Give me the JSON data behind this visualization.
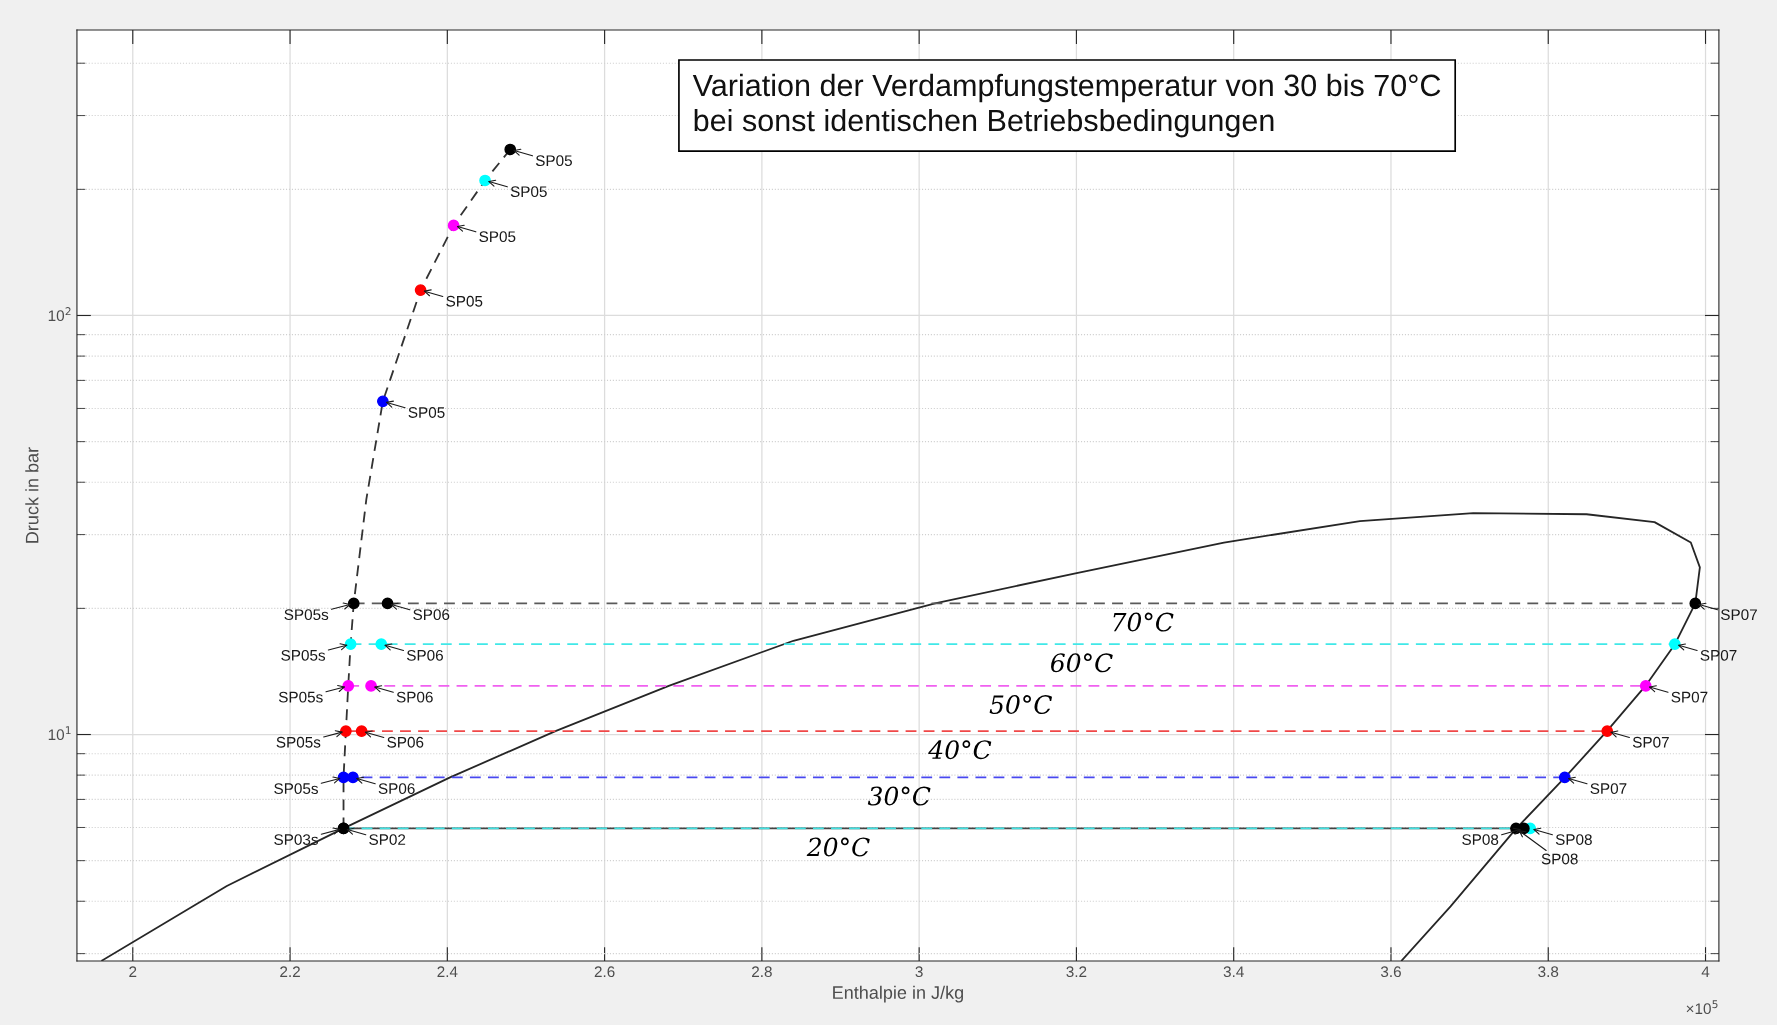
{
  "chart_data": {
    "type": "line",
    "xlabel": "Enthalpie in J/kg",
    "ylabel": "Druck in bar",
    "log": "y",
    "grid": true,
    "marker": "circle",
    "xlim": [
      1.929,
      4.017
    ],
    "ylim": [
      2.88,
      480
    ],
    "xticks": [
      2,
      2.2,
      2.4,
      2.6,
      2.8,
      3,
      3.2,
      3.4,
      3.6,
      3.8,
      4
    ],
    "yticks": [
      {
        "value": 10,
        "label": "10$^{1}$"
      },
      {
        "value": 100,
        "label": "10$^{2}$"
      }
    ],
    "series": [
      {
        "marker": "none",
        "line_style": "solid",
        "color": "#262626",
        "x": [
          1.9611,
          2.1196,
          2.268,
          2.4035,
          2.5375,
          2.6816,
          2.8401,
          3.0202,
          3.2003,
          3.3876,
          3.5605,
          3.7046,
          3.8487,
          3.9352,
          3.9813,
          3.9928,
          3.987,
          3.9611,
          3.9236,
          3.8746,
          3.8213,
          3.7594,
          3.6758,
          3.6138
        ],
        "values": [
          2.89,
          4.35,
          5.97,
          7.9,
          10.19,
          13.06,
          16.74,
          20.55,
          24.29,
          28.72,
          32.32,
          33.76,
          33.55,
          32.12,
          28.72,
          25.05,
          20.55,
          16.43,
          13.06,
          10.19,
          7.9,
          5.97,
          3.89,
          2.89
        ]
      },
      {
        "marker": "none",
        "line_style": "dashed",
        "color": "#333333",
        "x": [
          2.268,
          2.268,
          2.271,
          2.274,
          2.277,
          2.281,
          2.297,
          2.318,
          2.366,
          2.408,
          2.448,
          2.48
        ],
        "values": [
          5.97,
          7.9,
          10.19,
          13.06,
          16.43,
          20.55,
          36.4,
          62.4,
          115,
          164,
          210,
          249
        ]
      },
      {
        "marker": "none",
        "line_style": "solid",
        "color": "#444444",
        "x": [
          2.268,
          3.759
        ],
        "values": [
          5.97,
          5.97
        ]
      },
      {
        "name": "20°C",
        "marker": "none",
        "line_style": "dashed",
        "color": "#40e0e0",
        "x": [
          2.268,
          3.777
        ],
        "values": [
          5.97,
          5.97
        ]
      },
      {
        "name": "30°C",
        "marker": "none",
        "line_style": "dashed",
        "color": "#4848f0",
        "x": [
          2.268,
          3.821
        ],
        "values": [
          7.9,
          7.9
        ]
      },
      {
        "name": "40°C",
        "marker": "none",
        "line_style": "dashed",
        "color": "#f04848",
        "x": [
          2.271,
          3.875
        ],
        "values": [
          10.19,
          10.19
        ]
      },
      {
        "name": "50°C",
        "marker": "none",
        "line_style": "dashed",
        "color": "#f060f0",
        "x": [
          2.274,
          3.924
        ],
        "values": [
          13.06,
          13.06
        ]
      },
      {
        "name": "60°C",
        "marker": "none",
        "line_style": "dashed",
        "color": "#40e8e8",
        "x": [
          2.277,
          3.961
        ],
        "values": [
          16.43,
          16.43
        ]
      },
      {
        "name": "70°C",
        "marker": "none",
        "line_style": "dashed",
        "color": "#5a5a5a",
        "x": [
          2.281,
          3.987
        ],
        "values": [
          20.55,
          20.55
        ]
      },
      {
        "type": "scatter",
        "color": "#000000",
        "x": [
          2.48,
          2.281,
          2.324,
          3.987
        ],
        "values": [
          249,
          20.55,
          20.55,
          20.55
        ],
        "value_labels": [
          "SP05",
          "SP05s",
          "SP06",
          "SP07"
        ]
      },
      {
        "type": "scatter",
        "color": "#00ffff",
        "x": [
          2.448,
          2.277,
          2.316,
          3.961
        ],
        "values": [
          210,
          16.43,
          16.43,
          16.43
        ],
        "value_labels": [
          "SP05",
          "SP05s",
          "SP06",
          "SP07"
        ]
      },
      {
        "type": "scatter",
        "color": "#ff00ff",
        "x": [
          2.408,
          2.274,
          2.303,
          3.924
        ],
        "values": [
          164,
          13.06,
          13.06,
          13.06
        ],
        "value_labels": [
          "SP05",
          "SP05s",
          "SP06",
          "SP07"
        ]
      },
      {
        "type": "scatter",
        "color": "#ff0000",
        "x": [
          2.366,
          2.271,
          2.291,
          3.875
        ],
        "values": [
          115,
          10.19,
          10.19,
          10.19
        ],
        "value_labels": [
          "SP05",
          "SP05s",
          "SP06",
          "SP07"
        ]
      },
      {
        "type": "scatter",
        "color": "#0000ff",
        "x": [
          2.318,
          2.268,
          2.28,
          3.821
        ],
        "values": [
          62.4,
          7.9,
          7.9,
          7.9
        ],
        "value_labels": [
          "SP05",
          "SP05s",
          "SP06",
          "SP07"
        ]
      },
      {
        "type": "scatter",
        "color": "#00ffff",
        "x": [
          3.777
        ],
        "values": [
          5.97
        ],
        "value_labels": [
          "SP08"
        ]
      },
      {
        "type": "scatter",
        "color": "#000000",
        "x": [
          2.268,
          2.268,
          3.759,
          3.769
        ],
        "values": [
          5.97,
          5.97,
          5.97,
          5.97
        ],
        "value_labels": [
          "SP02",
          "SP03s",
          "SP08",
          "SP08"
        ]
      }
    ],
    "annotations": [
      "Variation der Verdampfungstemperatur von 30 bis 70°C\nbei sonst identischen Betriebsbedingungen",
      "×10$^{5}$"
    ]
  }
}
